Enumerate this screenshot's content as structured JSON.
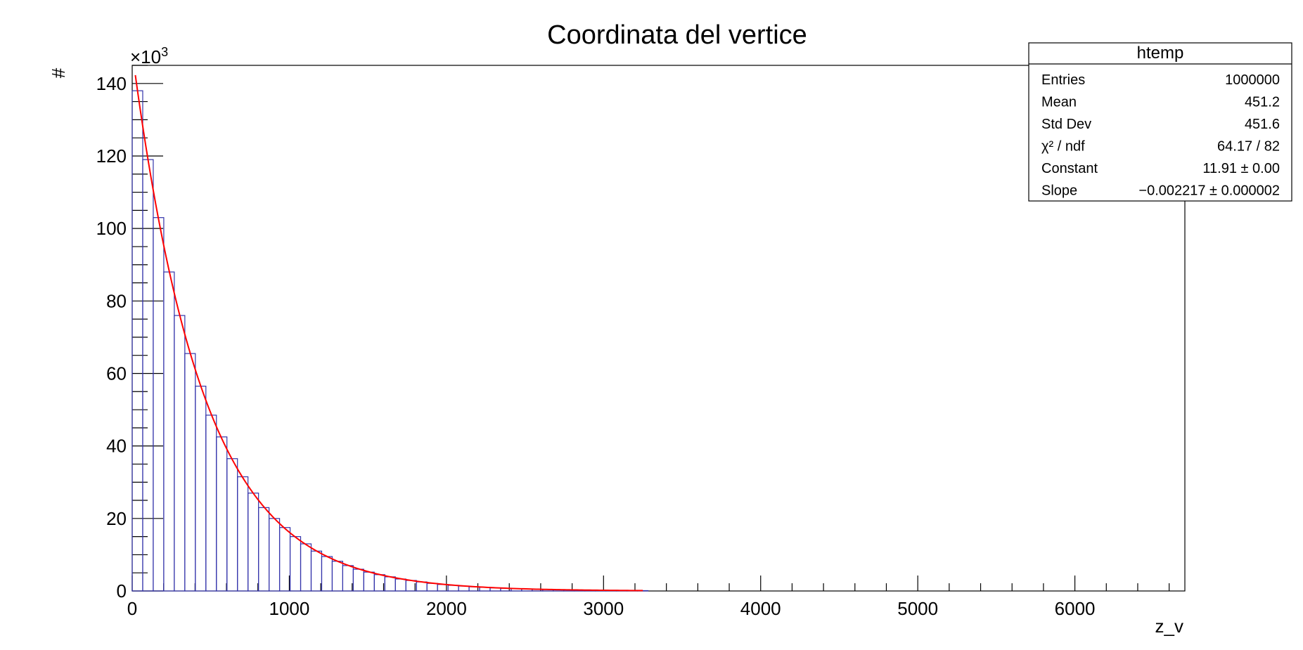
{
  "chart_data": {
    "type": "bar",
    "title": "Coordinata del vertice",
    "xlabel": "z_v",
    "ylabel": "#",
    "y_exponent_label": "×10",
    "y_exponent_power": "3",
    "xlim": [
      0,
      6700
    ],
    "ylim": [
      0,
      145000
    ],
    "x_ticks": [
      0,
      1000,
      2000,
      3000,
      4000,
      5000,
      6000
    ],
    "x_tick_labels": [
      "0",
      "1000",
      "2000",
      "3000",
      "4000",
      "5000",
      "6000"
    ],
    "y_ticks": [
      0,
      20000,
      40000,
      60000,
      80000,
      100000,
      120000,
      140000
    ],
    "y_tick_labels": [
      "0",
      "20",
      "40",
      "60",
      "80",
      "100",
      "120",
      "140"
    ],
    "grid": false,
    "legend": "top-right",
    "histogram": {
      "bin_width": 67,
      "bin_starts": [
        0,
        67,
        134,
        201,
        268,
        335,
        402,
        469,
        536,
        603,
        670,
        737,
        804,
        871,
        938,
        1005,
        1072,
        1139,
        1206,
        1273,
        1340,
        1407,
        1474,
        1541,
        1608,
        1675,
        1742,
        1809,
        1876,
        1943,
        2010,
        2077,
        2144,
        2211,
        2278,
        2345,
        2412,
        2479,
        2546,
        2613,
        2680,
        2747,
        2814,
        2881,
        2948,
        3015,
        3082,
        3149,
        3216
      ],
      "counts": [
        138000,
        119000,
        103000,
        88000,
        76000,
        65500,
        56500,
        48500,
        42500,
        36500,
        31500,
        27000,
        23000,
        20000,
        17500,
        15000,
        13000,
        11000,
        9500,
        8200,
        7000,
        6000,
        5200,
        4500,
        3900,
        3300,
        2900,
        2500,
        2100,
        1800,
        1550,
        1350,
        1150,
        1000,
        850,
        730,
        630,
        540,
        470,
        400,
        350,
        300,
        260,
        220,
        190,
        160,
        140,
        120,
        100
      ],
      "color": "#3333aa"
    },
    "fit": {
      "function": "expo",
      "constant": 11.91,
      "slope": -0.002217,
      "x_range": [
        20,
        3250
      ],
      "color": "#ff0000"
    },
    "stats_box": {
      "name": "htemp",
      "rows": [
        {
          "label": "Entries",
          "value": "1000000"
        },
        {
          "label": "Mean",
          "value": "451.2"
        },
        {
          "label": "Std Dev",
          "value": "451.6"
        },
        {
          "label": "χ² / ndf",
          "value": "64.17 / 82"
        },
        {
          "label": "Constant",
          "value": "11.91 ± 0.00"
        },
        {
          "label": "Slope",
          "value": "−0.002217 ± 0.000002"
        }
      ]
    }
  }
}
